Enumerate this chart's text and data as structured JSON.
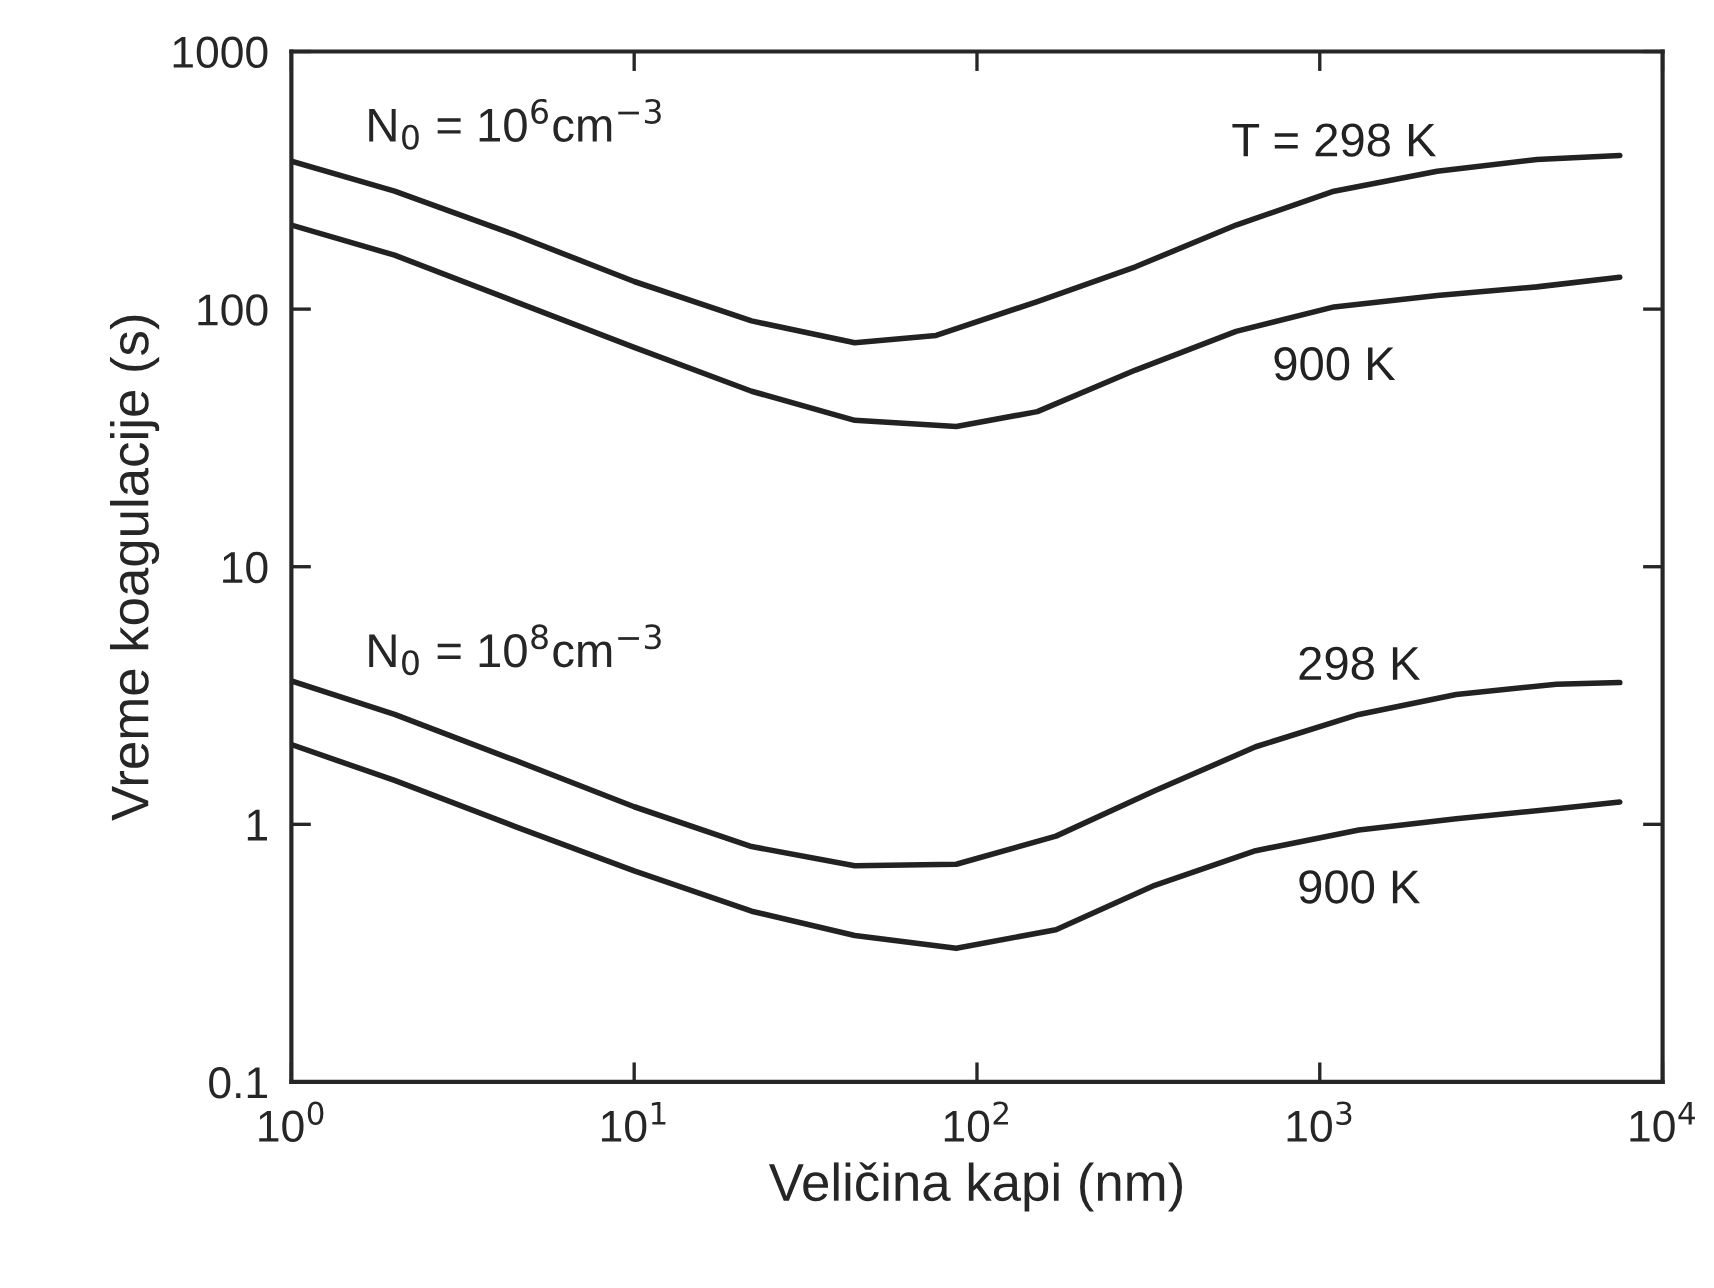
{
  "chart_data": {
    "type": "line",
    "xlabel": "Veličina kapi (nm)",
    "ylabel": "Vreme koagulacije (s)",
    "log": "xy",
    "x": [
      1,
      2,
      4.5,
      10,
      22,
      44,
      76,
      150,
      290,
      570,
      1100,
      2200,
      4300,
      7500
    ],
    "series": [
      {
        "name": "T = 298 K",
        "color": "#222222",
        "values": [
          375,
          287,
          194,
          128,
          90,
          74,
          79,
          107,
          146,
          212,
          287,
          343,
          381,
          395
        ]
      },
      {
        "name": "900 K",
        "color": "#222222",
        "x": [
          1,
          2,
          4.5,
          10,
          22,
          44,
          87,
          150,
          290,
          570,
          1100,
          2200,
          4300,
          7500
        ],
        "values": [
          212,
          162,
          107,
          71,
          48,
          37,
          35,
          40,
          58,
          82,
          102,
          113,
          122,
          133
        ]
      },
      {
        "name": "298 K",
        "color": "#222222",
        "x": [
          1,
          2,
          4.5,
          10,
          22,
          44,
          87,
          170,
          330,
          650,
          1300,
          2500,
          4900,
          7500
        ],
        "values": [
          3.6,
          2.67,
          1.77,
          1.17,
          0.82,
          0.69,
          0.7,
          0.9,
          1.35,
          2.0,
          2.67,
          3.19,
          3.5,
          3.55
        ]
      },
      {
        "name": "900 K",
        "color": "#222222",
        "x": [
          1,
          2,
          4.5,
          10,
          22,
          44,
          87,
          170,
          330,
          650,
          1300,
          2500,
          4900,
          7500
        ],
        "values": [
          2.04,
          1.48,
          0.98,
          0.66,
          0.46,
          0.37,
          0.33,
          0.39,
          0.58,
          0.79,
          0.95,
          1.05,
          1.15,
          1.22
        ]
      }
    ],
    "annotations": [
      "N$_{0}$ = 10$^{6}$cm$^{−3}$",
      "N$_{0}$ = 10$^{8}$cm$^{−3}$"
    ],
    "xlim": [
      1,
      10000
    ],
    "ylim": [
      0.1,
      1000
    ],
    "xticks": [
      {
        "value": 1,
        "label": "10$^{0}$"
      },
      {
        "value": 10,
        "label": "10$^{1}$"
      },
      {
        "value": 100,
        "label": "10$^{2}$"
      },
      {
        "value": 1000,
        "label": "10$^{3}$"
      },
      {
        "value": 10000,
        "label": "10$^{4}$"
      }
    ],
    "yticks": [
      0.1,
      1,
      10,
      100,
      1000
    ],
    "grid": false
  }
}
